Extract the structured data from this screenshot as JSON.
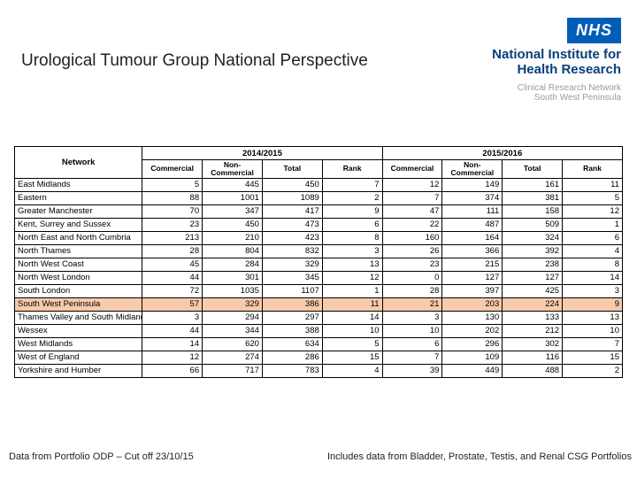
{
  "title": "Urological Tumour Group National Perspective",
  "logo": {
    "nhs": "NHS",
    "nihr_line1": "National Institute for",
    "nihr_line2": "Health Research",
    "crn_line1": "Clinical Research Network",
    "crn_line2": "South West Peninsula"
  },
  "table": {
    "network_label": "Network",
    "periods": [
      "2014/2015",
      "2015/2016"
    ],
    "sub_cols": [
      "Commercial",
      "Non-Commercial",
      "Total",
      "Rank"
    ],
    "highlight_row_index": 9,
    "highlight_color": "#f7caac",
    "rows": [
      {
        "n": "East Midlands",
        "a": [
          5,
          445,
          450,
          7,
          12,
          149,
          161,
          11
        ]
      },
      {
        "n": "Eastern",
        "a": [
          88,
          1001,
          1089,
          2,
          7,
          374,
          381,
          5
        ]
      },
      {
        "n": "Greater Manchester",
        "a": [
          70,
          347,
          417,
          9,
          47,
          111,
          158,
          12
        ]
      },
      {
        "n": "Kent, Surrey and Sussex",
        "a": [
          23,
          450,
          473,
          6,
          22,
          487,
          509,
          1
        ]
      },
      {
        "n": "North East and North Cumbria",
        "a": [
          213,
          210,
          423,
          8,
          160,
          164,
          324,
          6
        ]
      },
      {
        "n": "North Thames",
        "a": [
          28,
          804,
          832,
          3,
          26,
          366,
          392,
          4
        ]
      },
      {
        "n": "North West Coast",
        "a": [
          45,
          284,
          329,
          13,
          23,
          215,
          238,
          8
        ]
      },
      {
        "n": "North West London",
        "a": [
          44,
          301,
          345,
          12,
          0,
          127,
          127,
          14
        ]
      },
      {
        "n": "South London",
        "a": [
          72,
          1035,
          1107,
          1,
          28,
          397,
          425,
          3
        ]
      },
      {
        "n": "South West Peninsula",
        "a": [
          57,
          329,
          386,
          11,
          21,
          203,
          224,
          9
        ]
      },
      {
        "n": "Thames Valley and South Midlands",
        "a": [
          3,
          294,
          297,
          14,
          3,
          130,
          133,
          13
        ]
      },
      {
        "n": "Wessex",
        "a": [
          44,
          344,
          388,
          10,
          10,
          202,
          212,
          10
        ]
      },
      {
        "n": "West Midlands",
        "a": [
          14,
          620,
          634,
          5,
          6,
          296,
          302,
          7
        ]
      },
      {
        "n": "West of England",
        "a": [
          12,
          274,
          286,
          15,
          7,
          109,
          116,
          15
        ]
      },
      {
        "n": "Yorkshire and Humber",
        "a": [
          66,
          717,
          783,
          4,
          39,
          449,
          488,
          2
        ]
      }
    ]
  },
  "footer_left": "Data from Portfolio ODP – Cut off 23/10/15",
  "footer_right": "Includes data from Bladder, Prostate, Testis, and Renal CSG Portfolios"
}
